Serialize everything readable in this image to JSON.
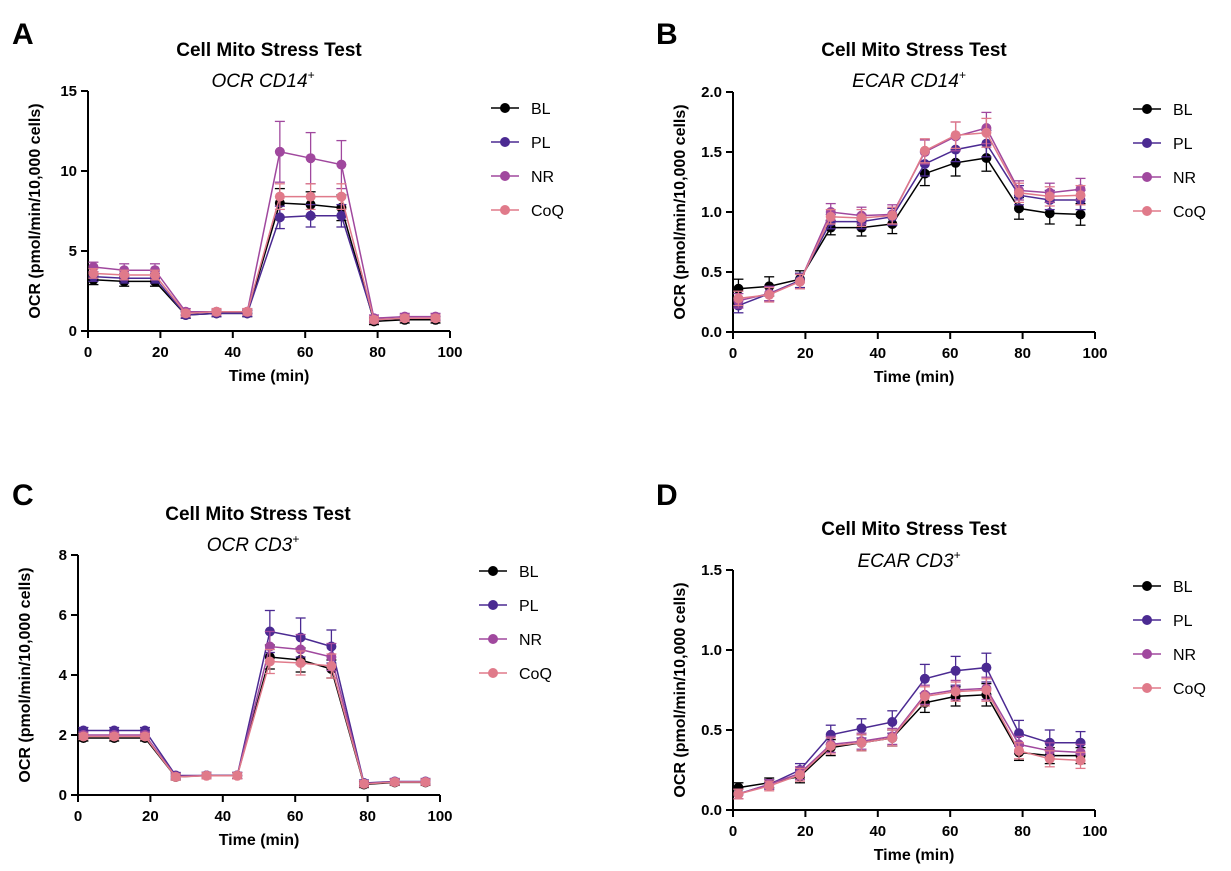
{
  "chart_data": [
    {
      "panel": "A",
      "type": "line",
      "title": "Cell Mito Stress Test",
      "subtitle_main": "OCR CD14",
      "subtitle_sup": "+",
      "xlabel": "Time (min)",
      "ylabel": "OCR (pmol/min/10,000 cells)",
      "xlim": [
        0,
        100
      ],
      "ylim": [
        0,
        15
      ],
      "xticks": [
        0,
        20,
        40,
        60,
        80,
        100
      ],
      "yticks": [
        0,
        5,
        10,
        15
      ],
      "ytick_labels": [
        "0",
        "5",
        "10",
        "15"
      ],
      "grid": false,
      "legend_position": "right",
      "x": [
        1.5,
        10,
        18.5,
        27,
        35.5,
        44,
        53,
        61.5,
        70,
        79,
        87.5,
        96
      ],
      "series": [
        {
          "name": "BL",
          "color": "#000000",
          "values": [
            3.2,
            3.1,
            3.1,
            1.0,
            1.1,
            1.1,
            8.0,
            7.9,
            7.7,
            0.6,
            0.7,
            0.7
          ],
          "errors": [
            0.3,
            0.3,
            0.3,
            0.2,
            0.2,
            0.2,
            0.9,
            0.8,
            0.8,
            0.2,
            0.2,
            0.2
          ]
        },
        {
          "name": "PL",
          "color": "#4b2a92",
          "values": [
            3.4,
            3.3,
            3.3,
            1.0,
            1.1,
            1.1,
            7.1,
            7.2,
            7.2,
            0.7,
            0.8,
            0.8
          ],
          "errors": [
            0.3,
            0.3,
            0.3,
            0.2,
            0.2,
            0.2,
            0.7,
            0.7,
            0.7,
            0.2,
            0.2,
            0.2
          ]
        },
        {
          "name": "NR",
          "color": "#a0489e",
          "values": [
            4.0,
            3.8,
            3.8,
            1.2,
            1.2,
            1.2,
            11.2,
            10.8,
            10.4,
            0.8,
            0.9,
            0.9
          ],
          "errors": [
            0.3,
            0.4,
            0.4,
            0.2,
            0.2,
            0.2,
            1.9,
            1.6,
            1.5,
            0.2,
            0.2,
            0.2
          ]
        },
        {
          "name": "CoQ",
          "color": "#e07a8a",
          "values": [
            3.6,
            3.5,
            3.5,
            1.1,
            1.2,
            1.2,
            8.4,
            8.4,
            8.4,
            0.7,
            0.8,
            0.8
          ],
          "errors": [
            0.3,
            0.3,
            0.3,
            0.2,
            0.2,
            0.2,
            0.8,
            0.8,
            0.8,
            0.2,
            0.2,
            0.2
          ]
        }
      ]
    },
    {
      "panel": "B",
      "type": "line",
      "title": "Cell Mito Stress Test",
      "subtitle_main": "ECAR CD14",
      "subtitle_sup": "+",
      "xlabel": "Time (min)",
      "ylabel": "OCR (pmol/min/10,000 cells)",
      "xlim": [
        0,
        100
      ],
      "ylim": [
        0,
        2.0
      ],
      "xticks": [
        0,
        20,
        40,
        60,
        80,
        100
      ],
      "yticks": [
        0,
        0.5,
        1.0,
        1.5,
        2.0
      ],
      "ytick_labels": [
        "0.0",
        "0.5",
        "1.0",
        "1.5",
        "2.0"
      ],
      "grid": false,
      "legend_position": "right",
      "x": [
        1.5,
        10,
        18.5,
        27,
        35.5,
        44,
        53,
        61.5,
        70,
        79,
        87.5,
        96
      ],
      "series": [
        {
          "name": "BL",
          "color": "#000000",
          "values": [
            0.36,
            0.38,
            0.44,
            0.87,
            0.87,
            0.9,
            1.32,
            1.41,
            1.45,
            1.03,
            0.99,
            0.98
          ],
          "errors": [
            0.08,
            0.08,
            0.07,
            0.06,
            0.07,
            0.08,
            0.1,
            0.11,
            0.11,
            0.09,
            0.09,
            0.09
          ]
        },
        {
          "name": "PL",
          "color": "#4b2a92",
          "values": [
            0.22,
            0.32,
            0.43,
            0.92,
            0.92,
            0.96,
            1.4,
            1.52,
            1.57,
            1.14,
            1.1,
            1.1
          ],
          "errors": [
            0.06,
            0.06,
            0.06,
            0.06,
            0.06,
            0.07,
            0.1,
            0.1,
            0.11,
            0.08,
            0.08,
            0.08
          ]
        },
        {
          "name": "NR",
          "color": "#a0489e",
          "values": [
            0.26,
            0.32,
            0.42,
            1.0,
            0.97,
            0.98,
            1.5,
            1.63,
            1.7,
            1.18,
            1.16,
            1.19
          ],
          "errors": [
            0.06,
            0.06,
            0.06,
            0.07,
            0.07,
            0.08,
            0.1,
            0.12,
            0.13,
            0.08,
            0.08,
            0.09
          ]
        },
        {
          "name": "CoQ",
          "color": "#e07a8a",
          "values": [
            0.28,
            0.31,
            0.42,
            0.96,
            0.95,
            0.97,
            1.51,
            1.64,
            1.66,
            1.16,
            1.13,
            1.14
          ],
          "errors": [
            0.06,
            0.06,
            0.06,
            0.06,
            0.07,
            0.07,
            0.1,
            0.11,
            0.12,
            0.08,
            0.08,
            0.08
          ]
        }
      ]
    },
    {
      "panel": "C",
      "type": "line",
      "title": "Cell Mito Stress Test",
      "subtitle_main": "OCR CD3",
      "subtitle_sup": "+",
      "xlabel": "Time (min)",
      "ylabel": "OCR (pmol/min/10,000 cells)",
      "xlim": [
        0,
        100
      ],
      "ylim": [
        0,
        8
      ],
      "xticks": [
        0,
        20,
        40,
        60,
        80,
        100
      ],
      "yticks": [
        0,
        2,
        4,
        6,
        8
      ],
      "ytick_labels": [
        "0",
        "2",
        "4",
        "6",
        "8"
      ],
      "grid": false,
      "legend_position": "right",
      "x": [
        1.5,
        10,
        18.5,
        27,
        35.5,
        44,
        53,
        61.5,
        70,
        79,
        87.5,
        96
      ],
      "series": [
        {
          "name": "BL",
          "color": "#000000",
          "values": [
            1.9,
            1.9,
            1.9,
            0.6,
            0.65,
            0.65,
            4.6,
            4.5,
            4.2,
            0.35,
            0.42,
            0.42
          ],
          "errors": [
            0.1,
            0.1,
            0.1,
            0.1,
            0.1,
            0.1,
            0.4,
            0.4,
            0.3,
            0.1,
            0.1,
            0.1
          ]
        },
        {
          "name": "PL",
          "color": "#4b2a92",
          "values": [
            2.15,
            2.15,
            2.15,
            0.65,
            0.65,
            0.65,
            5.45,
            5.25,
            4.95,
            0.4,
            0.45,
            0.45
          ],
          "errors": [
            0.1,
            0.1,
            0.1,
            0.1,
            0.1,
            0.1,
            0.7,
            0.65,
            0.55,
            0.1,
            0.1,
            0.1
          ]
        },
        {
          "name": "NR",
          "color": "#a0489e",
          "values": [
            2.0,
            2.0,
            2.0,
            0.62,
            0.65,
            0.65,
            4.95,
            4.85,
            4.6,
            0.38,
            0.44,
            0.44
          ],
          "errors": [
            0.1,
            0.1,
            0.1,
            0.1,
            0.1,
            0.1,
            0.5,
            0.5,
            0.45,
            0.1,
            0.1,
            0.1
          ]
        },
        {
          "name": "CoQ",
          "color": "#e07a8a",
          "values": [
            1.95,
            1.95,
            1.95,
            0.6,
            0.64,
            0.64,
            4.45,
            4.4,
            4.3,
            0.37,
            0.43,
            0.43
          ],
          "errors": [
            0.1,
            0.1,
            0.1,
            0.1,
            0.1,
            0.1,
            0.4,
            0.4,
            0.4,
            0.1,
            0.1,
            0.1
          ]
        }
      ]
    },
    {
      "panel": "D",
      "type": "line",
      "title": "Cell Mito Stress Test",
      "subtitle_main": "ECAR CD3",
      "subtitle_sup": "+",
      "xlabel": "Time (min)",
      "ylabel": "OCR (pmol/min/10,000 cells)",
      "xlim": [
        0,
        100
      ],
      "ylim": [
        0,
        1.5
      ],
      "xticks": [
        0,
        20,
        40,
        60,
        80,
        100
      ],
      "yticks": [
        0,
        0.5,
        1.0,
        1.5
      ],
      "ytick_labels": [
        "0.0",
        "0.5",
        "1.0",
        "1.5"
      ],
      "grid": false,
      "legend_position": "right",
      "x": [
        1.5,
        10,
        18.5,
        27,
        35.5,
        44,
        53,
        61.5,
        70,
        79,
        87.5,
        96
      ],
      "series": [
        {
          "name": "BL",
          "color": "#000000",
          "values": [
            0.14,
            0.17,
            0.21,
            0.39,
            0.42,
            0.45,
            0.67,
            0.71,
            0.72,
            0.36,
            0.34,
            0.34
          ],
          "errors": [
            0.03,
            0.03,
            0.04,
            0.05,
            0.05,
            0.05,
            0.06,
            0.06,
            0.07,
            0.05,
            0.05,
            0.05
          ]
        },
        {
          "name": "PL",
          "color": "#4b2a92",
          "values": [
            0.1,
            0.16,
            0.25,
            0.47,
            0.51,
            0.55,
            0.82,
            0.87,
            0.89,
            0.48,
            0.42,
            0.42
          ],
          "errors": [
            0.03,
            0.03,
            0.04,
            0.06,
            0.06,
            0.07,
            0.09,
            0.09,
            0.09,
            0.08,
            0.08,
            0.07
          ]
        },
        {
          "name": "NR",
          "color": "#a0489e",
          "values": [
            0.1,
            0.16,
            0.23,
            0.41,
            0.43,
            0.46,
            0.72,
            0.75,
            0.76,
            0.41,
            0.37,
            0.36
          ],
          "errors": [
            0.03,
            0.03,
            0.04,
            0.05,
            0.05,
            0.05,
            0.06,
            0.06,
            0.07,
            0.05,
            0.05,
            0.05
          ]
        },
        {
          "name": "CoQ",
          "color": "#e07a8a",
          "values": [
            0.1,
            0.15,
            0.22,
            0.4,
            0.42,
            0.45,
            0.71,
            0.74,
            0.75,
            0.37,
            0.32,
            0.31
          ],
          "errors": [
            0.03,
            0.03,
            0.04,
            0.05,
            0.05,
            0.05,
            0.06,
            0.06,
            0.07,
            0.05,
            0.05,
            0.05
          ]
        }
      ]
    }
  ]
}
